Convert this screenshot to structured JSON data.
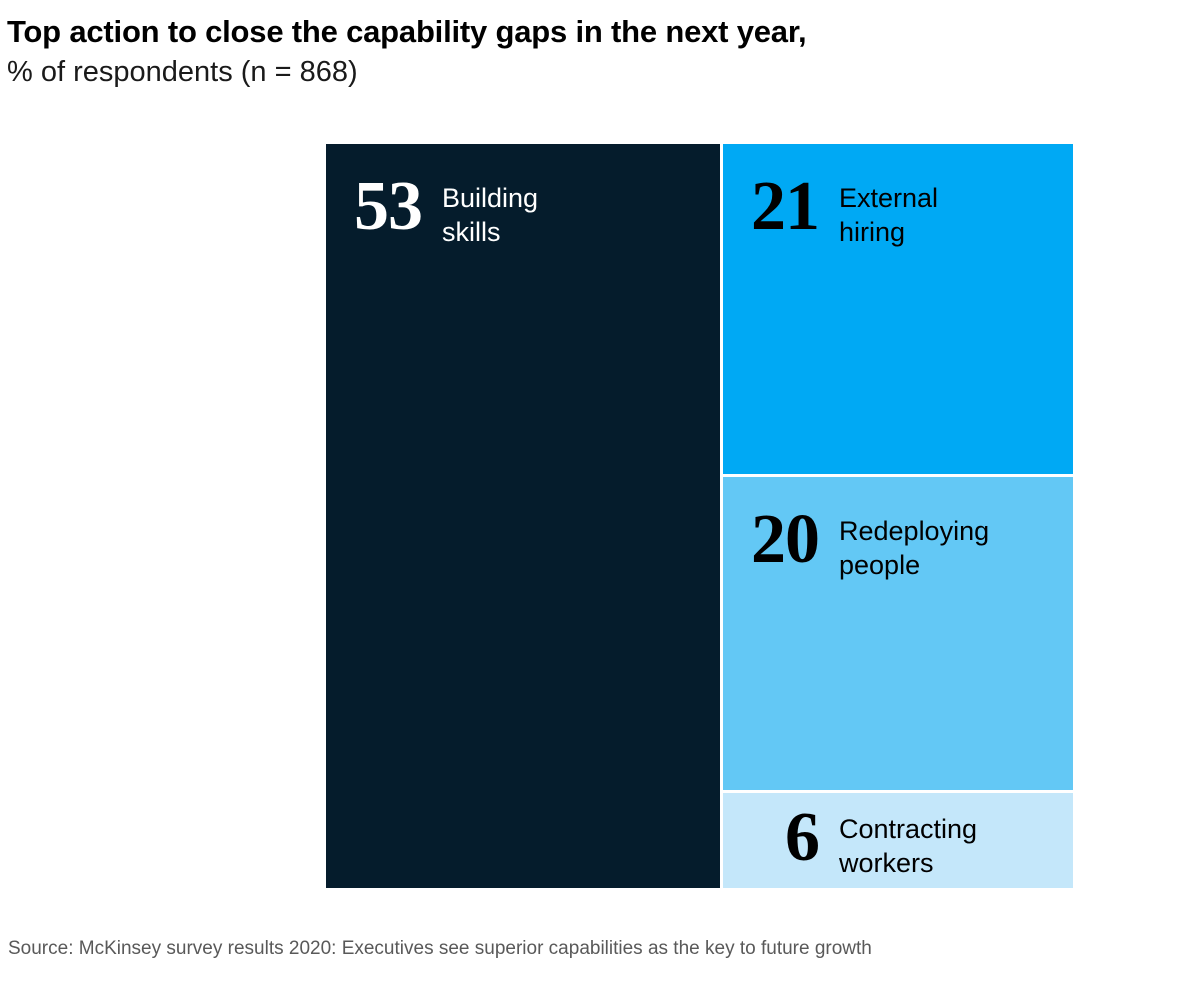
{
  "header": {
    "title": "Top action to close the capability gaps in the next year,",
    "subtitle": "% of respondents (n = 868)"
  },
  "chart_data": {
    "type": "treemap",
    "title": "Top action to close the capability gaps in the next year",
    "unit": "% of respondents",
    "sample_size_label": "n = 868",
    "total": 100,
    "layout": "left column 53%, right column stacked 21/20/6, white 3px gutters",
    "segments": [
      {
        "value": 53,
        "label": "Building skills",
        "label_lines": [
          "Building",
          "skills"
        ],
        "color": "#051C2C",
        "text_color": "#FFFFFF"
      },
      {
        "value": 21,
        "label": "External hiring",
        "label_lines": [
          "External",
          "hiring"
        ],
        "color": "#00A9F4",
        "text_color": "#000000"
      },
      {
        "value": 20,
        "label": "Redeploying people",
        "label_lines": [
          "Redeploying",
          "people"
        ],
        "color": "#63C8F5",
        "text_color": "#000000"
      },
      {
        "value": 6,
        "label": "Contracting workers",
        "label_lines": [
          "Contracting",
          "workers"
        ],
        "color": "#C4E7FA",
        "text_color": "#000000"
      }
    ]
  },
  "footer": {
    "source": "Source: McKinsey survey results 2020: Executives see superior capabilities as the key to future growth"
  }
}
